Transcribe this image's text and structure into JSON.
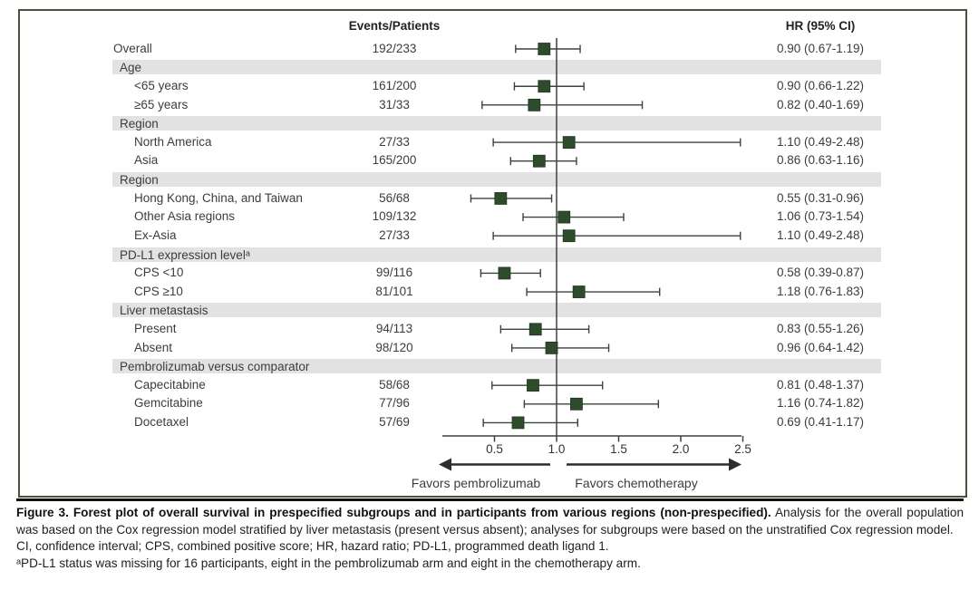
{
  "figure": {
    "colors": {
      "marker_green": "#2e4b2b",
      "band_gray": "#e2e2e2",
      "frame_border": "#45523e",
      "line": "#3d423d"
    }
  },
  "chart_data": {
    "type": "forest",
    "columns": {
      "events_header": "Events/Patients",
      "hr_header": "HR (95% CI)"
    },
    "x_axis": {
      "scale": "linear",
      "xlim": [
        0.1,
        2.5
      ],
      "tick_values": [
        0.5,
        1.0,
        1.5,
        2.0,
        2.5
      ],
      "tick_labels": [
        "0.5",
        "1.0",
        "1.5",
        "2.0",
        "2.5"
      ],
      "reference_line": 1.0
    },
    "direction_labels": {
      "left": "Favors pembrolizumab",
      "right": "Favors chemotherapy"
    },
    "rows": [
      {
        "kind": "item",
        "indent": false,
        "label": "Overall",
        "events": "192/233",
        "hr": 0.9,
        "lo": 0.67,
        "hi": 1.19,
        "hr_text": "0.90 (0.67-1.19)"
      },
      {
        "kind": "group",
        "label": "Age"
      },
      {
        "kind": "item",
        "indent": true,
        "label": "<65 years",
        "events": "161/200",
        "hr": 0.9,
        "lo": 0.66,
        "hi": 1.22,
        "hr_text": "0.90 (0.66-1.22)"
      },
      {
        "kind": "item",
        "indent": true,
        "label": "≥65 years",
        "events": "31/33",
        "hr": 0.82,
        "lo": 0.4,
        "hi": 1.69,
        "hr_text": "0.82 (0.40-1.69)"
      },
      {
        "kind": "group",
        "label": "Region"
      },
      {
        "kind": "item",
        "indent": true,
        "label": "North America",
        "events": "27/33",
        "hr": 1.1,
        "lo": 0.49,
        "hi": 2.48,
        "hr_text": "1.10 (0.49-2.48)"
      },
      {
        "kind": "item",
        "indent": true,
        "label": "Asia",
        "events": "165/200",
        "hr": 0.86,
        "lo": 0.63,
        "hi": 1.16,
        "hr_text": "0.86 (0.63-1.16)"
      },
      {
        "kind": "group",
        "label": "Region"
      },
      {
        "kind": "item",
        "indent": true,
        "label": "Hong Kong, China, and Taiwan",
        "events": "56/68",
        "hr": 0.55,
        "lo": 0.31,
        "hi": 0.96,
        "hr_text": "0.55 (0.31-0.96)"
      },
      {
        "kind": "item",
        "indent": true,
        "label": "Other Asia regions",
        "events": "109/132",
        "hr": 1.06,
        "lo": 0.73,
        "hi": 1.54,
        "hr_text": "1.06 (0.73-1.54)"
      },
      {
        "kind": "item",
        "indent": true,
        "label": "Ex-Asia",
        "events": "27/33",
        "hr": 1.1,
        "lo": 0.49,
        "hi": 2.48,
        "hr_text": "1.10 (0.49-2.48)"
      },
      {
        "kind": "group",
        "label": "PD-L1 expression levelᵃ"
      },
      {
        "kind": "item",
        "indent": true,
        "label": "CPS <10",
        "events": "99/116",
        "hr": 0.58,
        "lo": 0.39,
        "hi": 0.87,
        "hr_text": "0.58 (0.39-0.87)"
      },
      {
        "kind": "item",
        "indent": true,
        "label": "CPS ≥10",
        "events": "81/101",
        "hr": 1.18,
        "lo": 0.76,
        "hi": 1.83,
        "hr_text": "1.18 (0.76-1.83)"
      },
      {
        "kind": "group",
        "label": "Liver metastasis"
      },
      {
        "kind": "item",
        "indent": true,
        "label": "Present",
        "events": "94/113",
        "hr": 0.83,
        "lo": 0.55,
        "hi": 1.26,
        "hr_text": "0.83 (0.55-1.26)"
      },
      {
        "kind": "item",
        "indent": true,
        "label": "Absent",
        "events": "98/120",
        "hr": 0.96,
        "lo": 0.64,
        "hi": 1.42,
        "hr_text": "0.96 (0.64-1.42)"
      },
      {
        "kind": "group",
        "label": "Pembrolizumab versus comparator"
      },
      {
        "kind": "item",
        "indent": true,
        "label": "Capecitabine",
        "events": "58/68",
        "hr": 0.81,
        "lo": 0.48,
        "hi": 1.37,
        "hr_text": "0.81 (0.48-1.37)"
      },
      {
        "kind": "item",
        "indent": true,
        "label": "Gemcitabine",
        "events": "77/96",
        "hr": 1.16,
        "lo": 0.74,
        "hi": 1.82,
        "hr_text": "1.16 (0.74-1.82)"
      },
      {
        "kind": "item",
        "indent": true,
        "label": "Docetaxel",
        "events": "57/69",
        "hr": 0.69,
        "lo": 0.41,
        "hi": 1.17,
        "hr_text": "0.69 (0.41-1.17)"
      }
    ]
  },
  "caption": {
    "label": "Figure 3.",
    "bold_title": "Forest plot of overall survival in prespecified subgroups and in participants from various regions (non-prespecified).",
    "body": "Analysis for the overall population was based on the Cox regression model stratified by liver metastasis (present versus absent); analyses for subgroups were based on the unstratified Cox regression model.",
    "abbreviations": "CI, confidence interval; CPS, combined positive score; HR, hazard ratio; PD-L1, programmed death ligand 1.",
    "footnote": "ᵃPD-L1 status was missing for 16 participants, eight in the pembrolizumab arm and eight in the chemotherapy arm."
  }
}
